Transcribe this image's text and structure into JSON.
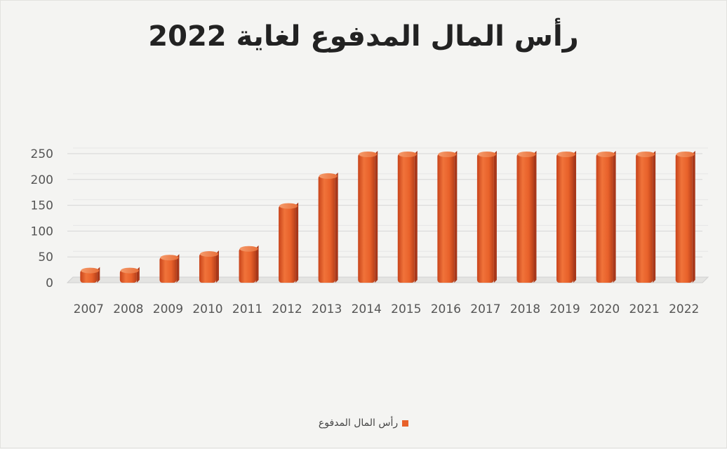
{
  "chart_data": {
    "type": "bar",
    "title": "رأس المال المدفوع لغاية 2022",
    "categories": [
      "2007",
      "2008",
      "2009",
      "2010",
      "2011",
      "2012",
      "2013",
      "2014",
      "2015",
      "2016",
      "2017",
      "2018",
      "2019",
      "2020",
      "2021",
      "2022"
    ],
    "series": [
      {
        "name": "رأس المال المدفوع",
        "values": [
          25,
          25,
          50,
          57,
          67,
          150,
          208,
          250,
          250,
          250,
          250,
          250,
          250,
          250,
          250,
          250
        ]
      }
    ],
    "yticks": [
      0,
      50,
      100,
      150,
      200,
      250
    ],
    "ylim": [
      0,
      250
    ],
    "grid": true,
    "legend_position": "bottom",
    "bar_color": "#e8612a"
  }
}
